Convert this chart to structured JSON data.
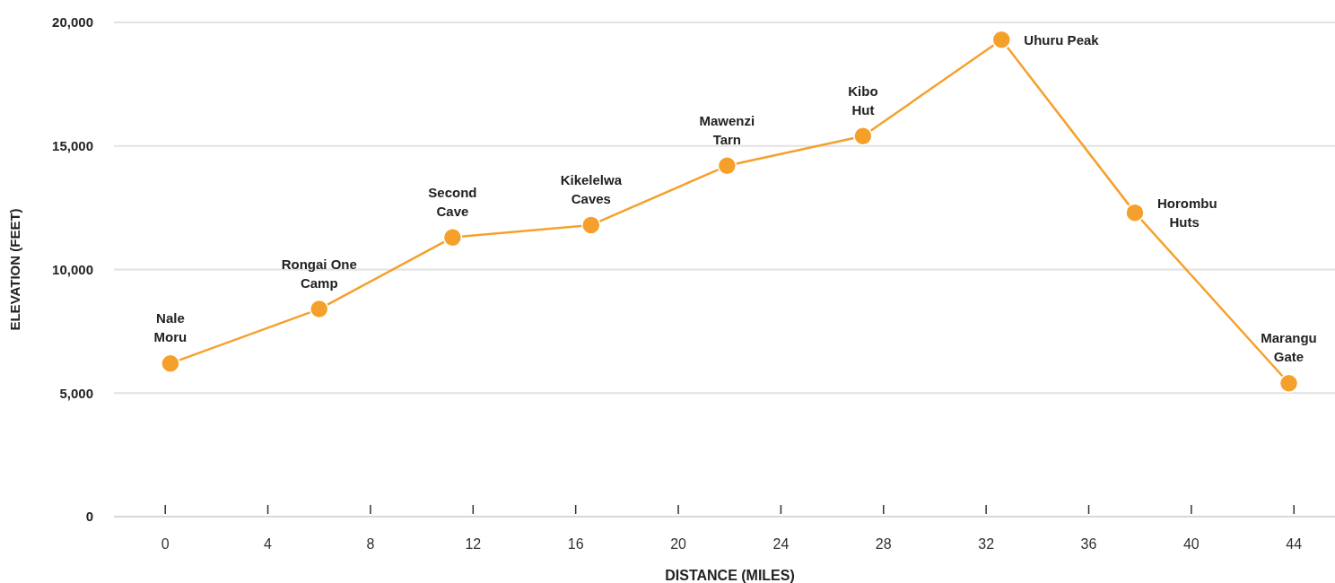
{
  "chart_data": {
    "type": "line",
    "xlabel": "DISTANCE (MILES)",
    "ylabel": "ELEVATION (FEET)",
    "x": [
      0.2,
      6,
      11.2,
      16.6,
      21.9,
      27.2,
      32.6,
      37.8,
      43.8
    ],
    "series": [
      {
        "color": "#f6a02c",
        "values": [
          6200,
          8400,
          11300,
          11800,
          14200,
          15400,
          19300,
          12300,
          5400
        ]
      }
    ],
    "xlim": [
      -2,
      45.6
    ],
    "xticks": [
      0,
      4,
      8,
      12,
      16,
      20,
      24,
      28,
      32,
      36,
      40,
      44
    ],
    "ylim": [
      0,
      20000
    ],
    "yticks": [
      {
        "value": 0,
        "label": "0"
      },
      {
        "value": 5000,
        "label": "5,000"
      },
      {
        "value": 10000,
        "label": "10,000"
      },
      {
        "value": 15000,
        "label": "15,000"
      },
      {
        "value": 20000,
        "label": "20,000"
      }
    ],
    "grid": "y",
    "marker": "circle",
    "line_style": "solid",
    "annotations": [
      {
        "text": "Nale\nMoru",
        "x": 0.2,
        "y": 6200
      },
      {
        "text": "Rongai One\nCamp",
        "x": 6,
        "y": 8400
      },
      {
        "text": "Second\nCave",
        "x": 11.2,
        "y": 11300
      },
      {
        "text": "Kikelelwa\nCaves",
        "x": 16.6,
        "y": 11800
      },
      {
        "text": "Mawenzi\nTarn",
        "x": 21.9,
        "y": 14200
      },
      {
        "text": "Kibo\nHut",
        "x": 27.2,
        "y": 15400
      },
      {
        "text": "Uhuru Peak",
        "x": 32.6,
        "y": 19300
      },
      {
        "text": "Horombu\nHuts",
        "x": 37.8,
        "y": 12300
      },
      {
        "text": "Marangu\nGate",
        "x": 43.8,
        "y": 5400
      }
    ]
  }
}
